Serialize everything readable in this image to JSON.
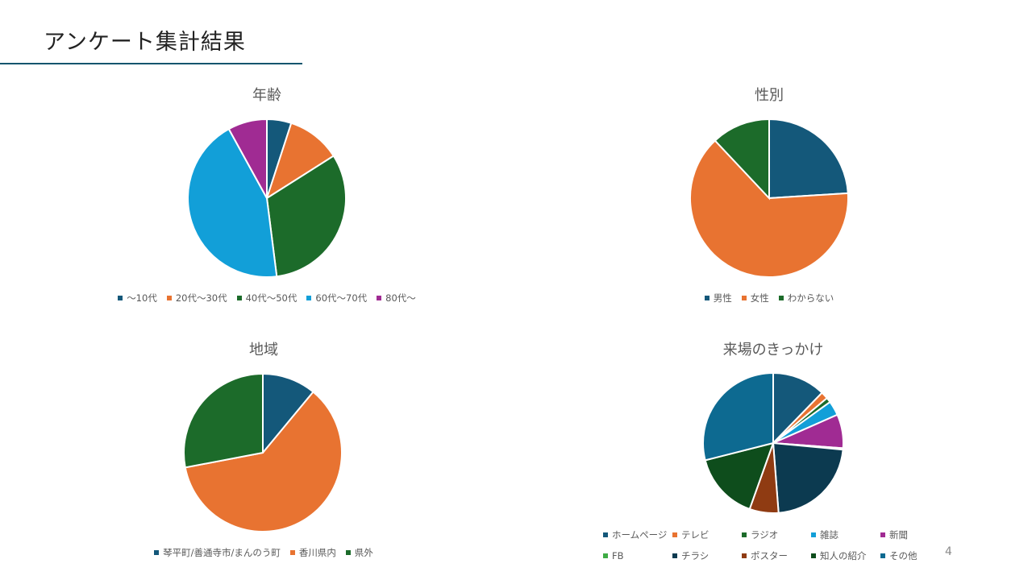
{
  "slide": {
    "title": "アンケート集計結果",
    "page_number": "4"
  },
  "colors": {
    "accent_rule": "#14556e"
  },
  "chart_data": [
    {
      "type": "pie",
      "title": "年齢",
      "categories": [
        "～10代",
        "20代～30代",
        "40代～50代",
        "60代～70代",
        "80代～"
      ],
      "values": [
        5,
        11,
        32,
        44,
        8
      ],
      "colors": [
        "#14587a",
        "#e87331",
        "#1c6b2a",
        "#129fd8",
        "#a02b93"
      ]
    },
    {
      "type": "pie",
      "title": "性別",
      "categories": [
        "男性",
        "女性",
        "わからない"
      ],
      "values": [
        24,
        64,
        12
      ],
      "colors": [
        "#14587a",
        "#e87331",
        "#1c6b2a"
      ]
    },
    {
      "type": "pie",
      "title": "地域",
      "categories": [
        "琴平町/善通寺市/まんのう町",
        "香川県内",
        "県外"
      ],
      "values": [
        11,
        61,
        28
      ],
      "colors": [
        "#14587a",
        "#e87331",
        "#1c6b2a"
      ]
    },
    {
      "type": "pie",
      "title": "来場のきっかけ",
      "categories": [
        "ホームページ",
        "テレビ",
        "ラジオ",
        "雑誌",
        "新聞",
        "FB",
        "チラシ",
        "ポスター",
        "知人の紹介",
        "その他"
      ],
      "values": [
        11,
        1.5,
        1,
        3,
        7,
        0.3,
        20,
        6,
        14,
        26
      ],
      "colors": [
        "#14587a",
        "#e87331",
        "#1c6b2a",
        "#129fd8",
        "#a02b93",
        "#3fac45",
        "#0c3a50",
        "#8f3b12",
        "#0e4d1c",
        "#0d6a91"
      ]
    }
  ]
}
